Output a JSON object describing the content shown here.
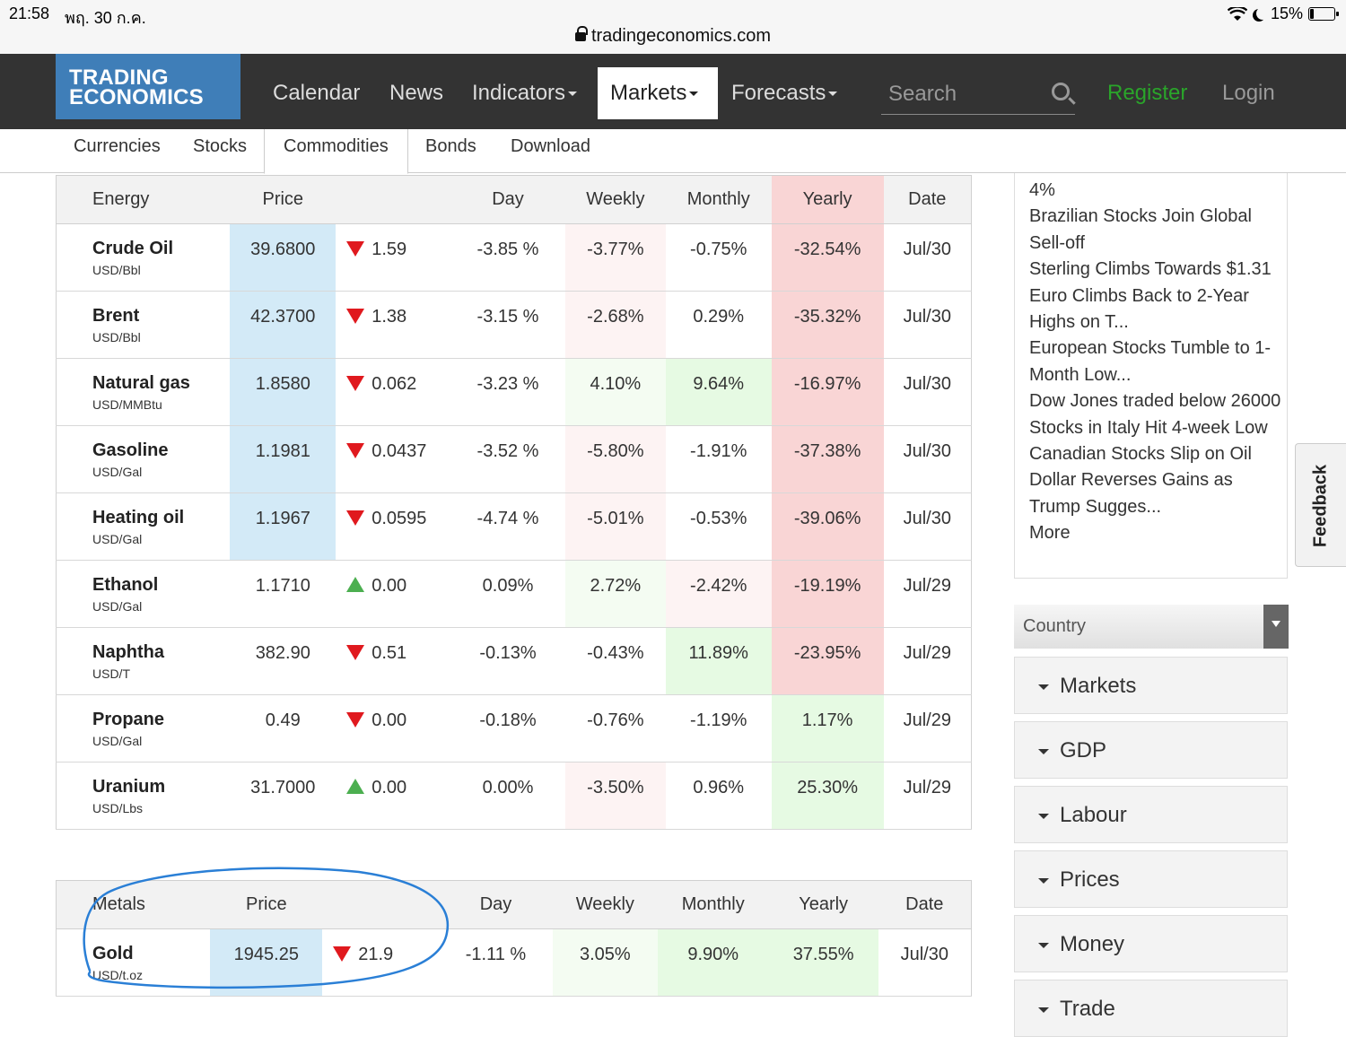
{
  "status_bar": {
    "time": "21:58",
    "date": "พฤ. 30 ก.ค.",
    "battery": "15%",
    "battery_level": 0.15
  },
  "browser": {
    "url": "tradingeconomics.com"
  },
  "logo": {
    "line1": "TRADING",
    "line2": "ECONOMICS"
  },
  "nav": {
    "calendar": "Calendar",
    "news": "News",
    "indicators": "Indicators",
    "markets": "Markets",
    "forecasts": "Forecasts",
    "search_placeholder": "Search",
    "register": "Register",
    "login": "Login"
  },
  "subnav": {
    "currencies": "Currencies",
    "stocks": "Stocks",
    "commodities": "Commodities",
    "bonds": "Bonds",
    "download": "Download"
  },
  "energy_table": {
    "headers": [
      "Energy",
      "Price",
      "",
      "Day",
      "Weekly",
      "Monthly",
      "Yearly",
      "Date"
    ],
    "rows": [
      {
        "name": "Crude Oil",
        "unit": "USD/Bbl",
        "price": "39.6800",
        "dir": "down",
        "change": "1.59",
        "day": "-3.85 %",
        "weekly": "-3.77%",
        "monthly": "-0.75%",
        "yearly": "-32.54%",
        "date": "Jul/30"
      },
      {
        "name": "Brent",
        "unit": "USD/Bbl",
        "price": "42.3700",
        "dir": "down",
        "change": "1.38",
        "day": "-3.15 %",
        "weekly": "-2.68%",
        "monthly": "0.29%",
        "yearly": "-35.32%",
        "date": "Jul/30"
      },
      {
        "name": "Natural gas",
        "unit": "USD/MMBtu",
        "price": "1.8580",
        "dir": "down",
        "change": "0.062",
        "day": "-3.23 %",
        "weekly": "4.10%",
        "monthly": "9.64%",
        "yearly": "-16.97%",
        "date": "Jul/30"
      },
      {
        "name": "Gasoline",
        "unit": "USD/Gal",
        "price": "1.1981",
        "dir": "down",
        "change": "0.0437",
        "day": "-3.52 %",
        "weekly": "-5.80%",
        "monthly": "-1.91%",
        "yearly": "-37.38%",
        "date": "Jul/30"
      },
      {
        "name": "Heating oil",
        "unit": "USD/Gal",
        "price": "1.1967",
        "dir": "down",
        "change": "0.0595",
        "day": "-4.74 %",
        "weekly": "-5.01%",
        "monthly": "-0.53%",
        "yearly": "-39.06%",
        "date": "Jul/30"
      },
      {
        "name": "Ethanol",
        "unit": "USD/Gal",
        "price": "1.1710",
        "dir": "up",
        "change": "0.00",
        "day": "0.09%",
        "weekly": "2.72%",
        "monthly": "-2.42%",
        "yearly": "-19.19%",
        "date": "Jul/29"
      },
      {
        "name": "Naphtha",
        "unit": "USD/T",
        "price": "382.90",
        "dir": "down",
        "change": "0.51",
        "day": "-0.13%",
        "weekly": "-0.43%",
        "monthly": "11.89%",
        "yearly": "-23.95%",
        "date": "Jul/29"
      },
      {
        "name": "Propane",
        "unit": "USD/Gal",
        "price": "0.49",
        "dir": "down",
        "change": "0.00",
        "day": "-0.18%",
        "weekly": "-0.76%",
        "monthly": "-1.19%",
        "yearly": "1.17%",
        "date": "Jul/29"
      },
      {
        "name": "Uranium",
        "unit": "USD/Lbs",
        "price": "31.7000",
        "dir": "up",
        "change": "0.00",
        "day": "0.00%",
        "weekly": "-3.50%",
        "monthly": "0.96%",
        "yearly": "25.30%",
        "date": "Jul/29"
      }
    ]
  },
  "metals_table": {
    "headers": [
      "Metals",
      "Price",
      "",
      "Day",
      "Weekly",
      "Monthly",
      "Yearly",
      "Date"
    ],
    "rows": [
      {
        "name": "Gold",
        "unit": "USD/t.oz",
        "price": "1945.25",
        "dir": "down",
        "change": "21.9",
        "day": "-1.11 %",
        "weekly": "3.05%",
        "monthly": "9.90%",
        "yearly": "37.55%",
        "date": "Jul/30"
      }
    ]
  },
  "news": {
    "items": [
      "4%",
      "Brazilian Stocks Join Global Sell-off",
      "Sterling Climbs Towards $1.31",
      "Euro Climbs Back to 2-Year Highs on T...",
      "European Stocks Tumble to 1-Month Low...",
      "Dow Jones traded below 26000",
      "Stocks in Italy Hit 4-week Low",
      "Canadian Stocks Slip on Oil",
      "Dollar Reverses Gains as Trump Sugges..."
    ],
    "more": "More"
  },
  "sidebar": {
    "country": "Country",
    "sections": [
      "Markets",
      "GDP",
      "Labour",
      "Prices",
      "Money",
      "Trade"
    ]
  },
  "feedback": "Feedback",
  "colors": {
    "nav_bg": "#333333",
    "logo_bg": "#3f7eb8",
    "register": "#2aa52a",
    "negative": "#b00000",
    "price_bg": "#d3eaf7",
    "scribble": "#2a7fd6"
  }
}
